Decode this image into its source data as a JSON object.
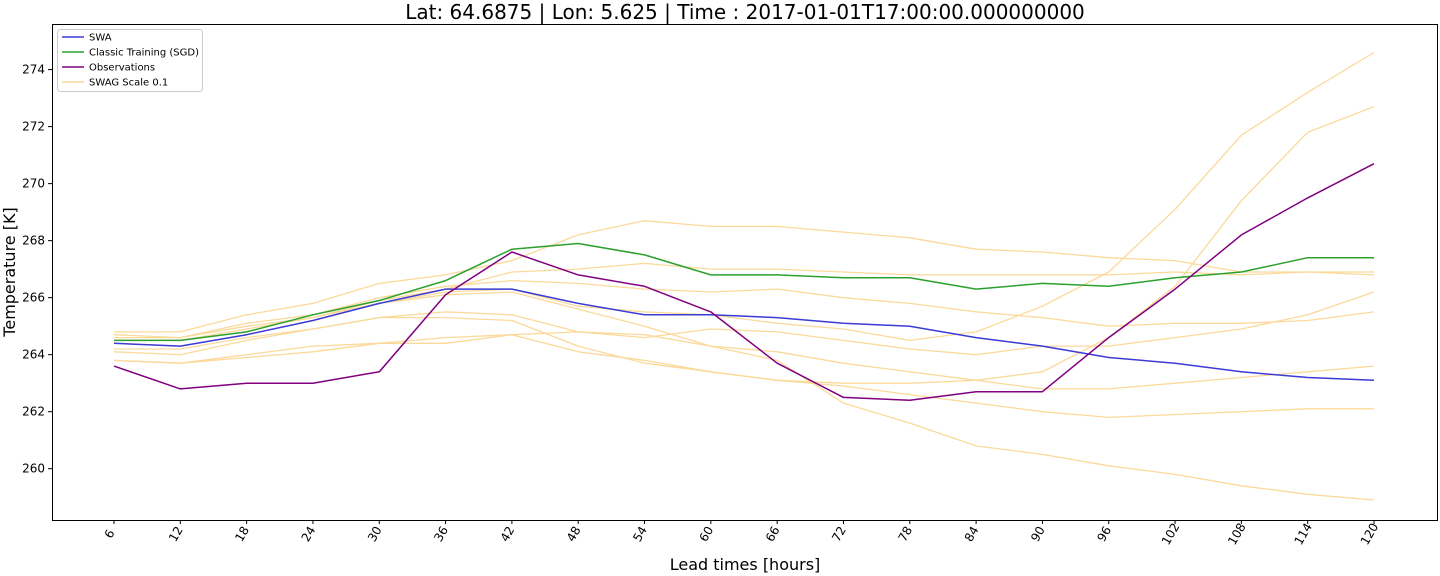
{
  "chart_data": {
    "type": "line",
    "title": "Lat: 64.6875 |  Lon: 5.625 | Time : 2017-01-01T17:00:00.000000000",
    "xlabel": "Lead times [hours]",
    "ylabel": "Temperature [K]",
    "x": [
      6,
      12,
      18,
      24,
      30,
      36,
      42,
      48,
      54,
      60,
      66,
      72,
      78,
      84,
      90,
      96,
      102,
      108,
      114,
      120
    ],
    "x_tick_labels": [
      "6",
      "12",
      "18",
      "24",
      "30",
      "36",
      "42",
      "48",
      "54",
      "60",
      "66",
      "72",
      "78",
      "84",
      "90",
      "96",
      "102",
      "108",
      "114",
      "120"
    ],
    "x_tick_rotation": -60,
    "ylim": [
      258.2,
      275.6
    ],
    "y_ticks": [
      260,
      262,
      264,
      266,
      268,
      270,
      272,
      274
    ],
    "y_tick_labels": [
      "260",
      "262",
      "264",
      "266",
      "268",
      "270",
      "272",
      "274"
    ],
    "grid": false,
    "legend_position": "top-left",
    "legend": [
      {
        "label": "SWA",
        "color": "#3b3bd6"
      },
      {
        "label": "Classic Training (SGD)",
        "color": "#2ca02c"
      },
      {
        "label": "Observations",
        "color": "#800080"
      },
      {
        "label": "SWAG Scale 0.1",
        "color": "#fbd99a"
      }
    ],
    "series": [
      {
        "name": "SWAG Scale 0.1",
        "color": "#fbd99a",
        "width": 1.3,
        "values": [
          264.1,
          264.0,
          264.5,
          264.9,
          265.3,
          265.3,
          265.2,
          264.3,
          263.7,
          263.4,
          263.1,
          263.0,
          263.0,
          263.1,
          263.4,
          264.6,
          266.4,
          269.4,
          271.8,
          272.7
        ]
      },
      {
        "name": "SWAG Scale 0.1",
        "color": "#fbd99a",
        "width": 1.3,
        "values": [
          264.8,
          264.8,
          265.4,
          265.8,
          266.5,
          266.8,
          267.3,
          268.2,
          268.7,
          268.5,
          268.5,
          268.3,
          268.1,
          267.7,
          267.6,
          267.4,
          267.3,
          266.9,
          266.9,
          266.9
        ]
      },
      {
        "name": "SWAG Scale 0.1",
        "color": "#fbd99a",
        "width": 1.3,
        "values": [
          264.6,
          264.6,
          265.1,
          265.4,
          266.0,
          266.4,
          266.6,
          266.5,
          266.3,
          266.2,
          266.3,
          266.0,
          265.8,
          265.5,
          265.3,
          265.0,
          265.1,
          265.1,
          265.2,
          265.5
        ]
      },
      {
        "name": "SWAG Scale 0.1",
        "color": "#fbd99a",
        "width": 1.3,
        "values": [
          264.2,
          264.2,
          264.6,
          264.9,
          265.3,
          265.5,
          265.4,
          264.8,
          264.6,
          264.9,
          264.8,
          264.5,
          264.2,
          264.0,
          264.3,
          264.3,
          264.6,
          264.9,
          265.4,
          266.2
        ]
      },
      {
        "name": "SWAG Scale 0.1",
        "color": "#fbd99a",
        "width": 1.3,
        "values": [
          263.8,
          263.7,
          264.0,
          264.3,
          264.4,
          264.6,
          264.7,
          264.8,
          264.7,
          264.3,
          264.1,
          263.7,
          263.4,
          263.1,
          262.8,
          262.8,
          263.0,
          263.2,
          263.4,
          263.6
        ]
      },
      {
        "name": "SWAG Scale 0.1",
        "color": "#fbd99a",
        "width": 1.3,
        "values": [
          263.8,
          263.7,
          263.9,
          264.1,
          264.4,
          264.4,
          264.7,
          264.1,
          263.8,
          263.4,
          263.1,
          262.9,
          262.6,
          262.3,
          262.0,
          261.8,
          261.9,
          262.0,
          262.1,
          262.1
        ]
      },
      {
        "name": "SWAG Scale 0.1",
        "color": "#fbd99a",
        "width": 1.3,
        "values": [
          264.7,
          264.6,
          265.0,
          265.3,
          265.8,
          266.1,
          266.2,
          265.6,
          265.0,
          264.3,
          263.8,
          262.3,
          261.6,
          260.8,
          260.5,
          260.1,
          259.8,
          259.4,
          259.1,
          258.9
        ]
      },
      {
        "name": "SWAG Scale 0.1",
        "color": "#fbd99a",
        "width": 1.3,
        "values": [
          264.4,
          264.3,
          264.7,
          265.2,
          265.8,
          266.2,
          266.3,
          265.7,
          265.5,
          265.4,
          265.1,
          264.9,
          264.5,
          264.8,
          265.7,
          266.9,
          269.1,
          271.7,
          273.2,
          274.6
        ]
      },
      {
        "name": "SWAG Scale 0.1",
        "color": "#fbd99a",
        "width": 1.3,
        "values": [
          264.5,
          264.5,
          264.9,
          265.3,
          265.9,
          266.3,
          266.9,
          267.0,
          267.2,
          267.0,
          267.0,
          266.9,
          266.8,
          266.8,
          266.8,
          266.8,
          266.9,
          266.8,
          266.9,
          266.8
        ]
      },
      {
        "name": "SWA",
        "color": "#3b3bd6",
        "width": 1.5,
        "values": [
          264.4,
          264.3,
          264.7,
          265.2,
          265.8,
          266.3,
          266.3,
          265.8,
          265.4,
          265.4,
          265.3,
          265.1,
          265.0,
          264.6,
          264.3,
          263.9,
          263.7,
          263.4,
          263.2,
          263.1
        ]
      },
      {
        "name": "Classic Training (SGD)",
        "color": "#2ca02c",
        "width": 1.5,
        "values": [
          264.5,
          264.5,
          264.8,
          265.4,
          265.9,
          266.6,
          267.7,
          267.9,
          267.5,
          266.8,
          266.8,
          266.7,
          266.7,
          266.3,
          266.5,
          266.4,
          266.7,
          266.9,
          267.4,
          267.4
        ]
      },
      {
        "name": "Observations",
        "color": "#800080",
        "width": 1.5,
        "values": [
          263.6,
          262.8,
          263.0,
          263.0,
          263.4,
          266.1,
          267.6,
          266.8,
          266.4,
          265.5,
          263.7,
          262.5,
          262.4,
          262.7,
          262.7,
          264.6,
          266.3,
          268.2,
          269.5,
          270.7
        ]
      }
    ]
  }
}
